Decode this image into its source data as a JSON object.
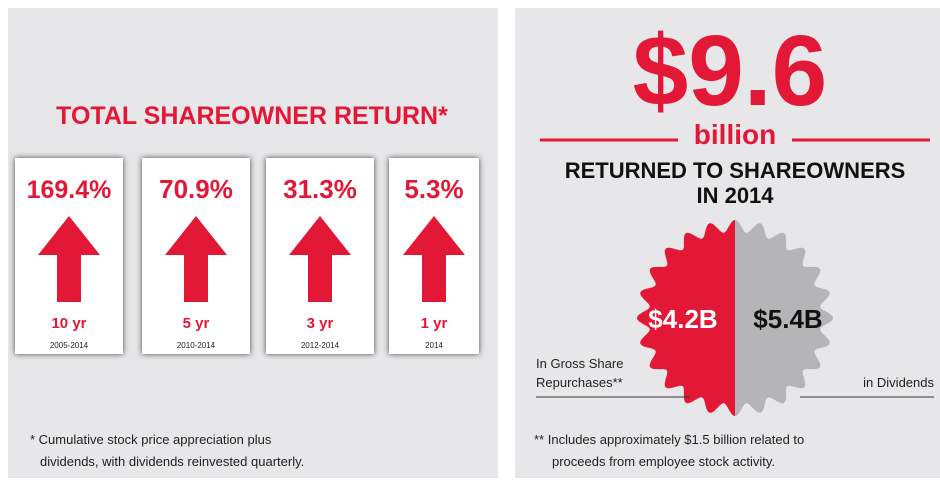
{
  "left": {
    "title": "TOTAL SHAREOWNER RETURN*",
    "cards": [
      {
        "value": "169.4%",
        "period": "10 yr",
        "years": "2005-2014"
      },
      {
        "value": "70.9%",
        "period": "5 yr",
        "years": "2010-2014"
      },
      {
        "value": "31.3%",
        "period": "3 yr",
        "years": "2012-2014"
      },
      {
        "value": "5.3%",
        "period": "1 yr",
        "years": "2014"
      }
    ],
    "footnote": [
      "* Cumulative stock price appreciation plus",
      "dividends, with dividends reinvested quarterly."
    ]
  },
  "right": {
    "amount": "$9.6",
    "unit": "billion",
    "heading": [
      "RETURNED TO SHAREOWNERS",
      "IN 2014"
    ],
    "split": {
      "left": {
        "value": "$4.2B",
        "label": [
          "In Gross Share",
          "Repurchases**"
        ]
      },
      "right": {
        "value": "$5.4B",
        "label": [
          "in Dividends"
        ]
      }
    },
    "footnote": [
      "** Includes approximately $1.5 billion related to",
      "proceeds from employee stock activity."
    ]
  }
}
